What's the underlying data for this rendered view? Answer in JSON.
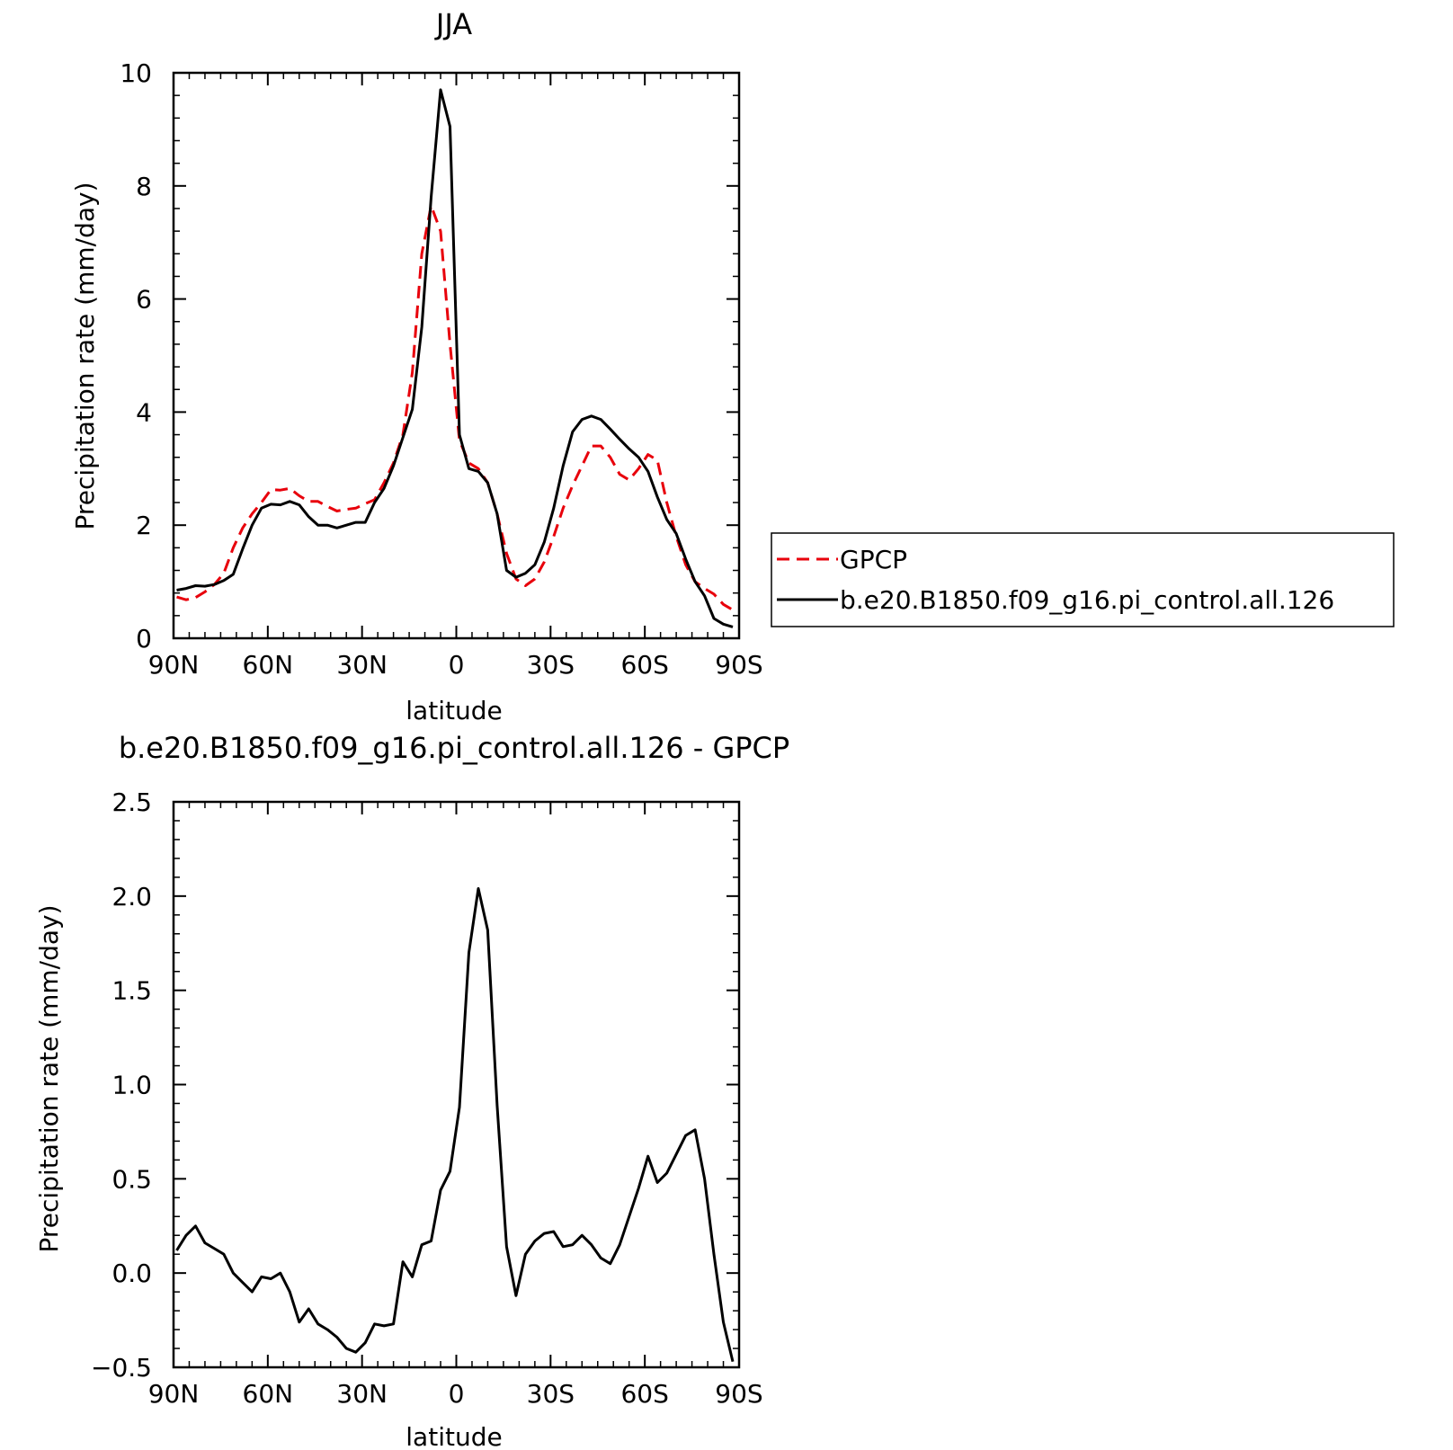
{
  "colors": {
    "model": "#000000",
    "obs": "#e8000b",
    "axis": "#000000"
  },
  "chart_data": [
    {
      "type": "line",
      "title": "JJA",
      "xlabel": "latitude",
      "ylabel": "Precipitation rate (mm/day)",
      "xlim": [
        90,
        -90
      ],
      "ylim": [
        0,
        10
      ],
      "xticks": [
        {
          "v": 90,
          "label": "90N"
        },
        {
          "v": 60,
          "label": "60N"
        },
        {
          "v": 30,
          "label": "30N"
        },
        {
          "v": 0,
          "label": "0"
        },
        {
          "v": -30,
          "label": "30S"
        },
        {
          "v": -60,
          "label": "60S"
        },
        {
          "v": -90,
          "label": "90S"
        }
      ],
      "yticks": [
        {
          "v": 0,
          "label": "0"
        },
        {
          "v": 2,
          "label": "2"
        },
        {
          "v": 4,
          "label": "4"
        },
        {
          "v": 6,
          "label": "6"
        },
        {
          "v": 8,
          "label": "8"
        },
        {
          "v": 10,
          "label": "10"
        }
      ],
      "legend": "right",
      "series": [
        {
          "name": "GPCP",
          "style": "dashed",
          "color": "#e8000b",
          "x": [
            89,
            86,
            83,
            80,
            77,
            74,
            71,
            68,
            65,
            62,
            59,
            56,
            53,
            50,
            47,
            44,
            41,
            38,
            35,
            32,
            29,
            26,
            23,
            20,
            17,
            14,
            11,
            8,
            5,
            2,
            -1,
            -4,
            -7,
            -10,
            -13,
            -16,
            -19,
            -22,
            -25,
            -28,
            -31,
            -34,
            -37,
            -40,
            -43,
            -46,
            -49,
            -52,
            -55,
            -58,
            -61,
            -64,
            -67,
            -70,
            -73,
            -76,
            -79,
            -82,
            -85,
            -88
          ],
          "y": [
            0.73,
            0.68,
            0.72,
            0.82,
            0.95,
            1.15,
            1.6,
            1.95,
            2.2,
            2.4,
            2.63,
            2.62,
            2.65,
            2.52,
            2.42,
            2.42,
            2.33,
            2.25,
            2.28,
            2.3,
            2.38,
            2.45,
            2.75,
            3.1,
            3.6,
            4.7,
            6.8,
            7.65,
            7.2,
            5.2,
            3.5,
            3.1,
            3.0,
            2.75,
            2.2,
            1.5,
            1.05,
            0.93,
            1.05,
            1.35,
            1.8,
            2.3,
            2.7,
            3.05,
            3.4,
            3.4,
            3.2,
            2.9,
            2.8,
            3.0,
            3.25,
            3.15,
            2.4,
            1.8,
            1.3,
            1.0,
            0.88,
            0.78,
            0.6,
            0.5
          ]
        },
        {
          "name": "b.e20.B1850.f09_g16.pi_control.all.126",
          "style": "solid",
          "color": "#000000",
          "x": [
            89,
            86,
            83,
            80,
            77,
            74,
            71,
            68,
            65,
            62,
            59,
            56,
            53,
            50,
            47,
            44,
            41,
            38,
            35,
            32,
            29,
            26,
            23,
            20,
            17,
            14,
            11,
            8,
            5,
            2,
            -1,
            -4,
            -7,
            -10,
            -13,
            -16,
            -19,
            -22,
            -25,
            -28,
            -31,
            -34,
            -37,
            -40,
            -43,
            -46,
            -49,
            -52,
            -55,
            -58,
            -61,
            -64,
            -67,
            -70,
            -73,
            -76,
            -79,
            -82,
            -85,
            -88
          ],
          "y": [
            0.85,
            0.88,
            0.93,
            0.92,
            0.95,
            1.02,
            1.13,
            1.58,
            2.0,
            2.3,
            2.37,
            2.36,
            2.42,
            2.36,
            2.15,
            2.0,
            2.0,
            1.95,
            2.0,
            2.05,
            2.05,
            2.4,
            2.65,
            3.05,
            3.55,
            4.05,
            5.5,
            7.8,
            9.7,
            9.05,
            3.6,
            3.0,
            2.95,
            2.75,
            2.2,
            1.2,
            1.08,
            1.15,
            1.3,
            1.7,
            2.3,
            3.05,
            3.65,
            3.87,
            3.93,
            3.87,
            3.7,
            3.52,
            3.35,
            3.2,
            2.95,
            2.5,
            2.1,
            1.85,
            1.4,
            1.0,
            0.75,
            0.35,
            0.25,
            0.2
          ]
        }
      ]
    },
    {
      "type": "line",
      "title": "b.e20.B1850.f09_g16.pi_control.all.126 - GPCP",
      "xlabel": "latitude",
      "ylabel": "Precipitation rate (mm/day)",
      "xlim": [
        90,
        -90
      ],
      "ylim": [
        -0.5,
        2.5
      ],
      "xticks": [
        {
          "v": 90,
          "label": "90N"
        },
        {
          "v": 60,
          "label": "60N"
        },
        {
          "v": 30,
          "label": "30N"
        },
        {
          "v": 0,
          "label": "0"
        },
        {
          "v": -30,
          "label": "30S"
        },
        {
          "v": -60,
          "label": "60S"
        },
        {
          "v": -90,
          "label": "90S"
        }
      ],
      "yticks": [
        {
          "v": -0.5,
          "label": "−0.5"
        },
        {
          "v": 0,
          "label": "0.0"
        },
        {
          "v": 0.5,
          "label": "0.5"
        },
        {
          "v": 1,
          "label": "1.0"
        },
        {
          "v": 1.5,
          "label": "1.5"
        },
        {
          "v": 2,
          "label": "2.0"
        },
        {
          "v": 2.5,
          "label": "2.5"
        }
      ],
      "series": [
        {
          "style": "solid",
          "color": "#000000",
          "x": [
            89,
            86,
            83,
            80,
            77,
            74,
            71,
            68,
            65,
            62,
            59,
            56,
            53,
            50,
            47,
            44,
            41,
            38,
            35,
            32,
            29,
            26,
            23,
            20,
            17,
            14,
            11,
            8,
            5,
            2,
            -1,
            -4,
            -7,
            -10,
            -13,
            -16,
            -19,
            -22,
            -25,
            -28,
            -31,
            -34,
            -37,
            -40,
            -43,
            -46,
            -49,
            -52,
            -55,
            -58,
            -61,
            -64,
            -67,
            -70,
            -73,
            -76,
            -79,
            -82,
            -85,
            -88
          ],
          "y": [
            0.12,
            0.2,
            0.25,
            0.16,
            0.13,
            0.1,
            0.0,
            -0.05,
            -0.1,
            -0.02,
            -0.03,
            0.0,
            -0.1,
            -0.26,
            -0.19,
            -0.27,
            -0.3,
            -0.34,
            -0.4,
            -0.42,
            -0.37,
            -0.27,
            -0.28,
            -0.27,
            0.06,
            -0.02,
            0.15,
            0.17,
            0.44,
            0.54,
            0.88,
            1.7,
            2.04,
            1.82,
            0.89,
            0.14,
            -0.12,
            0.1,
            0.17,
            0.21,
            0.22,
            0.14,
            0.15,
            0.2,
            0.15,
            0.08,
            0.05,
            0.15,
            0.3,
            0.45,
            0.62,
            0.48,
            0.53,
            0.63,
            0.73,
            0.76,
            0.5,
            0.1,
            -0.26,
            -0.47
          ]
        }
      ]
    }
  ]
}
